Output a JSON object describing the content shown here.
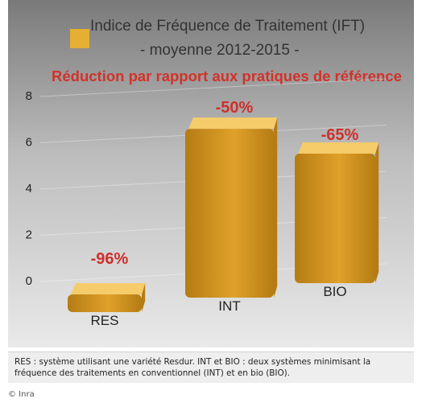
{
  "chart_data": {
    "type": "bar",
    "title": "Indice de Fréquence de Traitement (IFT)",
    "subtitle": "- moyenne 2012-2015 -",
    "annotation": "Réduction par rapport  aux pratiques de référence",
    "categories": [
      "RES",
      "INT",
      "BIO"
    ],
    "values": [
      0.3,
      7.3,
      5.6
    ],
    "bar_labels": [
      "-96%",
      "-50%",
      "-65%"
    ],
    "yticks": [
      "0",
      "2",
      "4",
      "6",
      "8"
    ],
    "ylim": [
      0,
      8
    ],
    "grid": true,
    "legend": "top-left",
    "colors": {
      "background_top": "#7a7a7a",
      "background_bottom": "#e9e9e9",
      "bar_front": "#e0a12a",
      "bar_top": "#f6cc6a",
      "bar_side": "#b57c14",
      "legend_swatch": "#e6ae32",
      "title_text": "#333333",
      "annotation_text": "#d3322a",
      "bar_label_text": "#cf2f2b"
    }
  },
  "caption": "RES : système utilisant une variété Resdur. INT et BIO : deux systèmes minimisant la fréquence des traitements en conventionnel (INT) et en bio (BIO).",
  "credit": "© Inra"
}
